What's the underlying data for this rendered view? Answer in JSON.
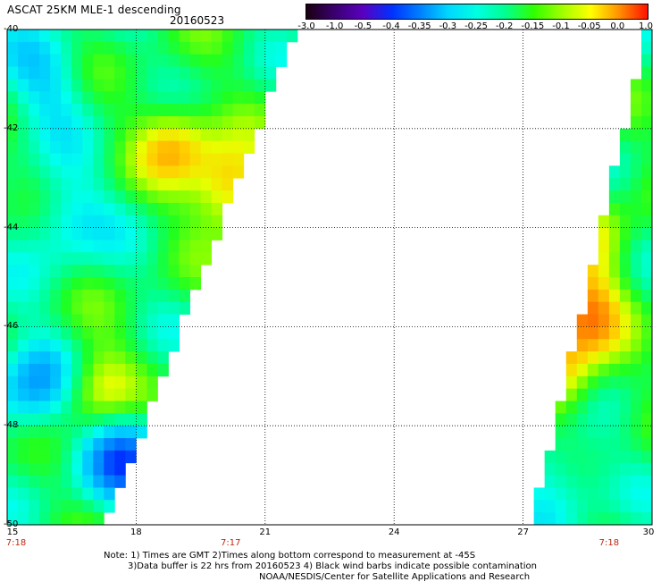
{
  "header": {
    "title": "ASCAT 25KM MLE-1 descending",
    "date": "20160523"
  },
  "colorbar": {
    "labels": [
      "-3.0",
      "-1.0",
      "-0.5",
      "-0.4",
      "-0.35",
      "-0.3",
      "-0.25",
      "-0.2",
      "-0.15",
      "-0.1",
      "-0.05",
      "0.0",
      "1.0"
    ],
    "colors": [
      "#1a0010",
      "#3a0070",
      "#5a00c0",
      "#0030ff",
      "#0080ff",
      "#00d8ff",
      "#00ffe0",
      "#00ff90",
      "#30ff00",
      "#a0ff00",
      "#ffff00",
      "#ff9000",
      "#ff1000"
    ]
  },
  "axes": {
    "lat_labels": [
      "-40",
      "-42",
      "-44",
      "-46",
      "-48",
      "-50"
    ],
    "lon_labels": [
      "15",
      "18",
      "21",
      "24",
      "27",
      "30"
    ],
    "time_labels": [
      {
        "text": "7:18",
        "lon": 15
      },
      {
        "text": "7:17",
        "lon": 20.2
      },
      {
        "text": "7:18",
        "lon": 29
      }
    ],
    "lat_range": [
      -50,
      -40
    ],
    "lon_range": [
      15,
      30
    ],
    "grid": true
  },
  "notes": {
    "line1": "Note: 1) Times are GMT 2)Times along bottom correspond to measurement at -45S",
    "line2": "3)Data buffer is 22 hrs from 20160523 4) Black wind barbs indicate possible contamination",
    "line3": "NOAA/NESDIS/Center for Satellite Applications and Research"
  },
  "swaths": {
    "west": {
      "top_edge_lon": 21.7,
      "bottom_edge_lon": 17.3
    },
    "east": {
      "top_edge_lon": 29.9,
      "bottom_edge_lon": 27.2
    }
  },
  "hotspots": [
    {
      "lat": -42.3,
      "lon": 18.9,
      "value": -0.05
    },
    {
      "lat": -47.3,
      "lon": 17.1,
      "value": -0.05
    },
    {
      "lat": -45.7,
      "lon": 28.4,
      "value": 0.0
    },
    {
      "lat": -47.0,
      "lon": 27.9,
      "value": -0.05
    },
    {
      "lat": -44.2,
      "lon": 28.7,
      "value": -0.1
    },
    {
      "lat": -43.2,
      "lon": 20.2,
      "value": 0.0
    }
  ],
  "coldspots": [
    {
      "lat": -47.2,
      "lon": 15.6,
      "value": -0.35
    },
    {
      "lat": -48.6,
      "lon": 17.7,
      "value": -0.4
    },
    {
      "lat": -43.8,
      "lon": 16.3,
      "value": -0.3
    },
    {
      "lat": -41.0,
      "lon": 15.9,
      "value": -0.3
    },
    {
      "lat": -49.0,
      "lon": 27.8,
      "value": -0.3
    }
  ]
}
